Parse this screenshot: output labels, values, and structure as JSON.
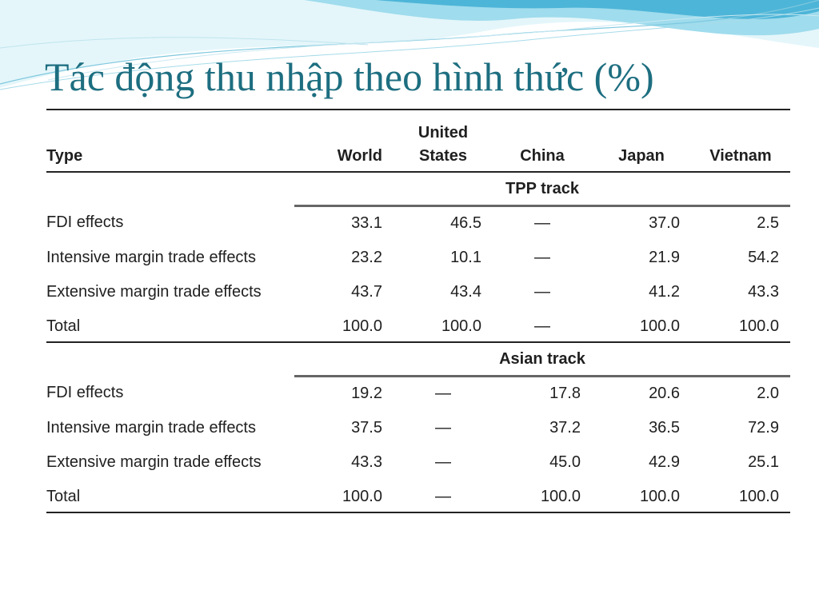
{
  "slide": {
    "title": "Tác động thu nhập theo hình thức (%)"
  },
  "colors": {
    "title": "#1d6e80",
    "wave_light": "#d6f1f7",
    "wave_mid": "#7fd0e6",
    "wave_dark": "#3aa9cf",
    "rule": "#222222"
  },
  "table": {
    "headers": {
      "type": "Type",
      "world": "World",
      "us_line1": "United",
      "us_line2": "States",
      "china": "China",
      "japan": "Japan",
      "vietnam": "Vietnam"
    },
    "sections": [
      {
        "track": "TPP track",
        "rows": [
          {
            "label": "FDI effects",
            "values": [
              "33.1",
              "46.5",
              "—",
              "37.0",
              "2.5"
            ]
          },
          {
            "label": "Intensive margin trade effects",
            "values": [
              "23.2",
              "10.1",
              "—",
              "21.9",
              "54.2"
            ]
          },
          {
            "label": "Extensive margin trade effects",
            "values": [
              "43.7",
              "43.4",
              "—",
              "41.2",
              "43.3"
            ]
          },
          {
            "label": "Total",
            "values": [
              "100.0",
              "100.0",
              "—",
              "100.0",
              "100.0"
            ]
          }
        ]
      },
      {
        "track": "Asian track",
        "rows": [
          {
            "label": "FDI effects",
            "values": [
              "19.2",
              "—",
              "17.8",
              "20.6",
              "2.0"
            ]
          },
          {
            "label": "Intensive margin trade effects",
            "values": [
              "37.5",
              "—",
              "37.2",
              "36.5",
              "72.9"
            ]
          },
          {
            "label": "Extensive margin trade effects",
            "values": [
              "43.3",
              "—",
              "45.0",
              "42.9",
              "25.1"
            ]
          },
          {
            "label": "Total",
            "values": [
              "100.0",
              "—",
              "100.0",
              "100.0",
              "100.0"
            ]
          }
        ]
      }
    ]
  }
}
